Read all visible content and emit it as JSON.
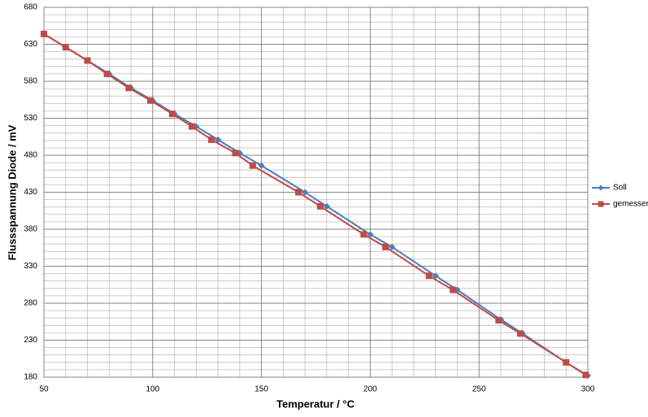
{
  "chart_data": {
    "type": "line",
    "xlabel": "Temperatur  /  °C",
    "ylabel": "Flussspannung Diode  /  mV",
    "xlim": [
      50,
      300
    ],
    "xticks": [
      50,
      100,
      150,
      200,
      250,
      300
    ],
    "ylim": [
      180,
      680
    ],
    "yticks": [
      180,
      230,
      280,
      330,
      380,
      430,
      480,
      530,
      580,
      630,
      680
    ],
    "grid": true,
    "legend": "right",
    "series": [
      {
        "name": "Soll",
        "color": "#4a7ebb",
        "marker": "diamond",
        "x": [
          50,
          60,
          70,
          80,
          90,
          100,
          110,
          120,
          130,
          140,
          150,
          170,
          180,
          200,
          210,
          230,
          240,
          260,
          270,
          290,
          300
        ],
        "values": [
          644,
          626,
          608,
          590,
          571,
          554,
          536,
          519,
          501,
          483,
          466,
          430,
          411,
          373,
          356,
          317,
          298,
          258,
          239,
          200,
          182
        ]
      },
      {
        "name": "gemessen",
        "color": "#be4b48",
        "marker": "square",
        "x": [
          50,
          60,
          70,
          79,
          89,
          99,
          109,
          118,
          127,
          138,
          146,
          167,
          177,
          197,
          207,
          227,
          238,
          259,
          269,
          290,
          299
        ],
        "values": [
          644,
          626,
          608,
          590,
          571,
          554,
          536,
          519,
          501,
          483,
          466,
          430,
          411,
          373,
          356,
          317,
          298,
          257,
          239,
          200,
          183
        ]
      }
    ]
  }
}
